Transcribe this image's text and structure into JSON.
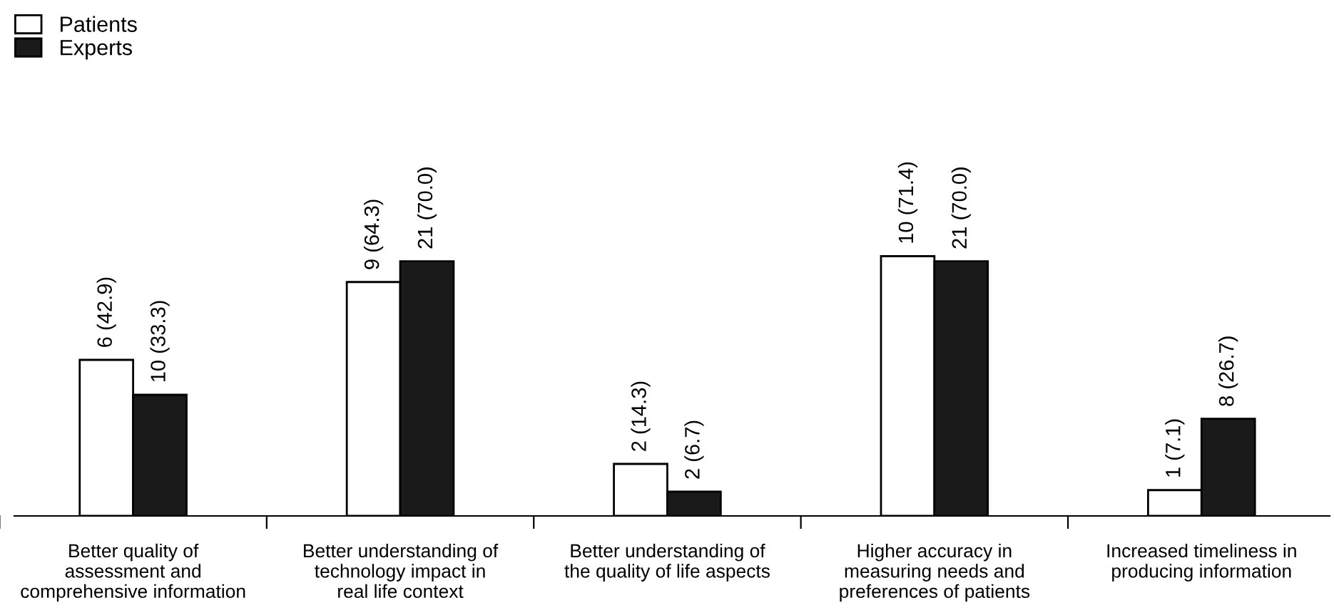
{
  "chart_data": {
    "type": "bar",
    "categories": [
      "Better quality of\nassessment and\ncomprehensive information",
      "Better understanding of\ntechnology impact in\nreal life context",
      "Better understanding of\nthe quality of life aspects",
      "Higher accuracy in\nmeasuring needs and\npreferences of patients",
      "Increased timeliness in\nproducing information"
    ],
    "series": [
      {
        "name": "Patients",
        "color": "#ffffff",
        "values": [
          42.9,
          64.3,
          14.3,
          71.4,
          7.1
        ],
        "value_labels": [
          "6 (42.9)",
          "9 (64.3)",
          "2 (14.3)",
          "10 (71.4)",
          "1 (7.1)"
        ]
      },
      {
        "name": "Experts",
        "color": "#1a1a1a",
        "values": [
          33.3,
          70.0,
          6.7,
          70.0,
          26.7
        ],
        "value_labels": [
          "10 (33.3)",
          "21 (70.0)",
          "2 (6.7)",
          "21 (70.0)",
          "8 (26.7)"
        ]
      }
    ],
    "legend": "top left",
    "tick_labels": "x",
    "grid": false
  }
}
